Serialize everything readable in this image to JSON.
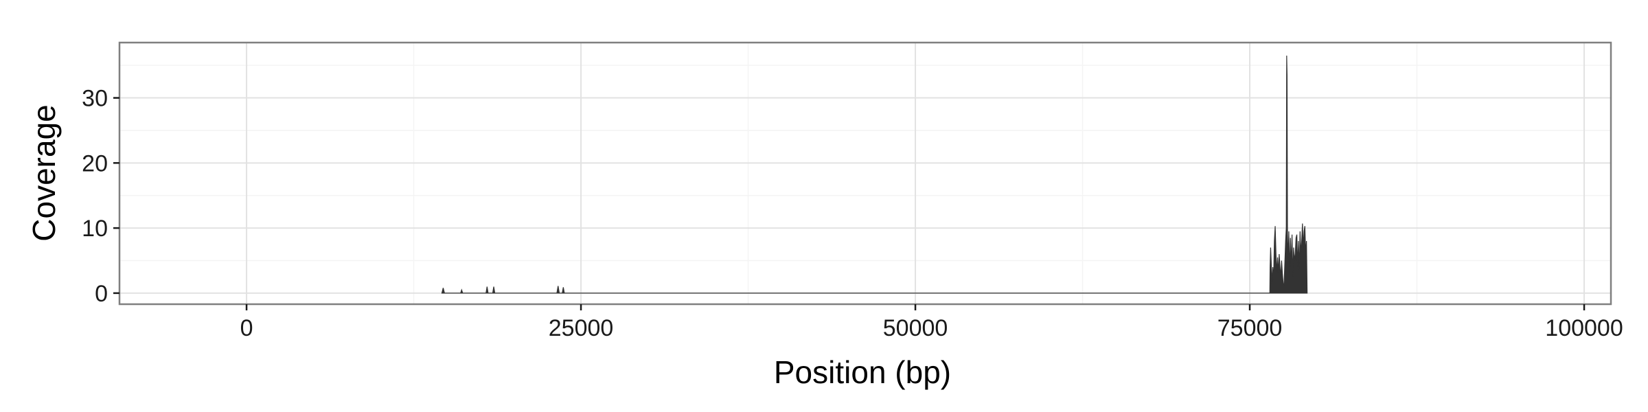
{
  "chart_data": {
    "type": "area",
    "title": "",
    "xlabel": "Position (bp)",
    "ylabel": "Coverage",
    "xlim": [
      -9500,
      102000
    ],
    "ylim": [
      -1.7,
      38.5
    ],
    "x_ticks": [
      0,
      25000,
      50000,
      75000,
      100000
    ],
    "x_tick_labels": [
      "0",
      "25000",
      "50000",
      "75000",
      "100000"
    ],
    "y_ticks": [
      0,
      10,
      20,
      30
    ],
    "y_tick_labels": [
      "0",
      "10",
      "20",
      "30"
    ],
    "grid": true,
    "legend": "none",
    "series": [
      {
        "color": "#333333",
        "points": [
          [
            14600,
            0
          ],
          [
            14700,
            0.8
          ],
          [
            14800,
            0
          ],
          [
            16000,
            0
          ],
          [
            16080,
            0.5
          ],
          [
            16160,
            0
          ],
          [
            17900,
            0
          ],
          [
            17980,
            1.0
          ],
          [
            18060,
            0
          ],
          [
            18400,
            0
          ],
          [
            18480,
            1.0
          ],
          [
            18560,
            0
          ],
          [
            23200,
            0
          ],
          [
            23290,
            1.1
          ],
          [
            23380,
            0
          ],
          [
            23600,
            0
          ],
          [
            23680,
            0.9
          ],
          [
            23760,
            0
          ],
          [
            76500,
            0
          ],
          [
            76520,
            4
          ],
          [
            76560,
            7
          ],
          [
            76600,
            5
          ],
          [
            76660,
            1.5
          ],
          [
            76720,
            4
          ],
          [
            76780,
            2
          ],
          [
            76840,
            8
          ],
          [
            76900,
            10.3
          ],
          [
            76960,
            6
          ],
          [
            77020,
            3
          ],
          [
            77080,
            5.5
          ],
          [
            77140,
            3
          ],
          [
            77200,
            6
          ],
          [
            77260,
            4
          ],
          [
            77320,
            2.5
          ],
          [
            77380,
            5
          ],
          [
            77440,
            3
          ],
          [
            77500,
            1.5
          ],
          [
            77560,
            1.0
          ],
          [
            77620,
            4.5
          ],
          [
            77680,
            8
          ],
          [
            77730,
            10
          ],
          [
            77760,
            36.5
          ],
          [
            77790,
            33.5
          ],
          [
            77820,
            9
          ],
          [
            77870,
            5
          ],
          [
            77920,
            9.5
          ],
          [
            77980,
            3
          ],
          [
            78040,
            8.5
          ],
          [
            78100,
            4
          ],
          [
            78160,
            9
          ],
          [
            78220,
            2.5
          ],
          [
            78280,
            7
          ],
          [
            78340,
            5
          ],
          [
            78400,
            6
          ],
          [
            78460,
            8.5
          ],
          [
            78520,
            9
          ],
          [
            78580,
            4
          ],
          [
            78640,
            8
          ],
          [
            78700,
            3.5
          ],
          [
            78760,
            9.5
          ],
          [
            78820,
            6
          ],
          [
            78880,
            8
          ],
          [
            78940,
            10.7
          ],
          [
            79000,
            7
          ],
          [
            79060,
            9.5
          ],
          [
            79120,
            10.3
          ],
          [
            79180,
            6
          ],
          [
            79240,
            8
          ],
          [
            79290,
            0
          ]
        ]
      }
    ]
  }
}
